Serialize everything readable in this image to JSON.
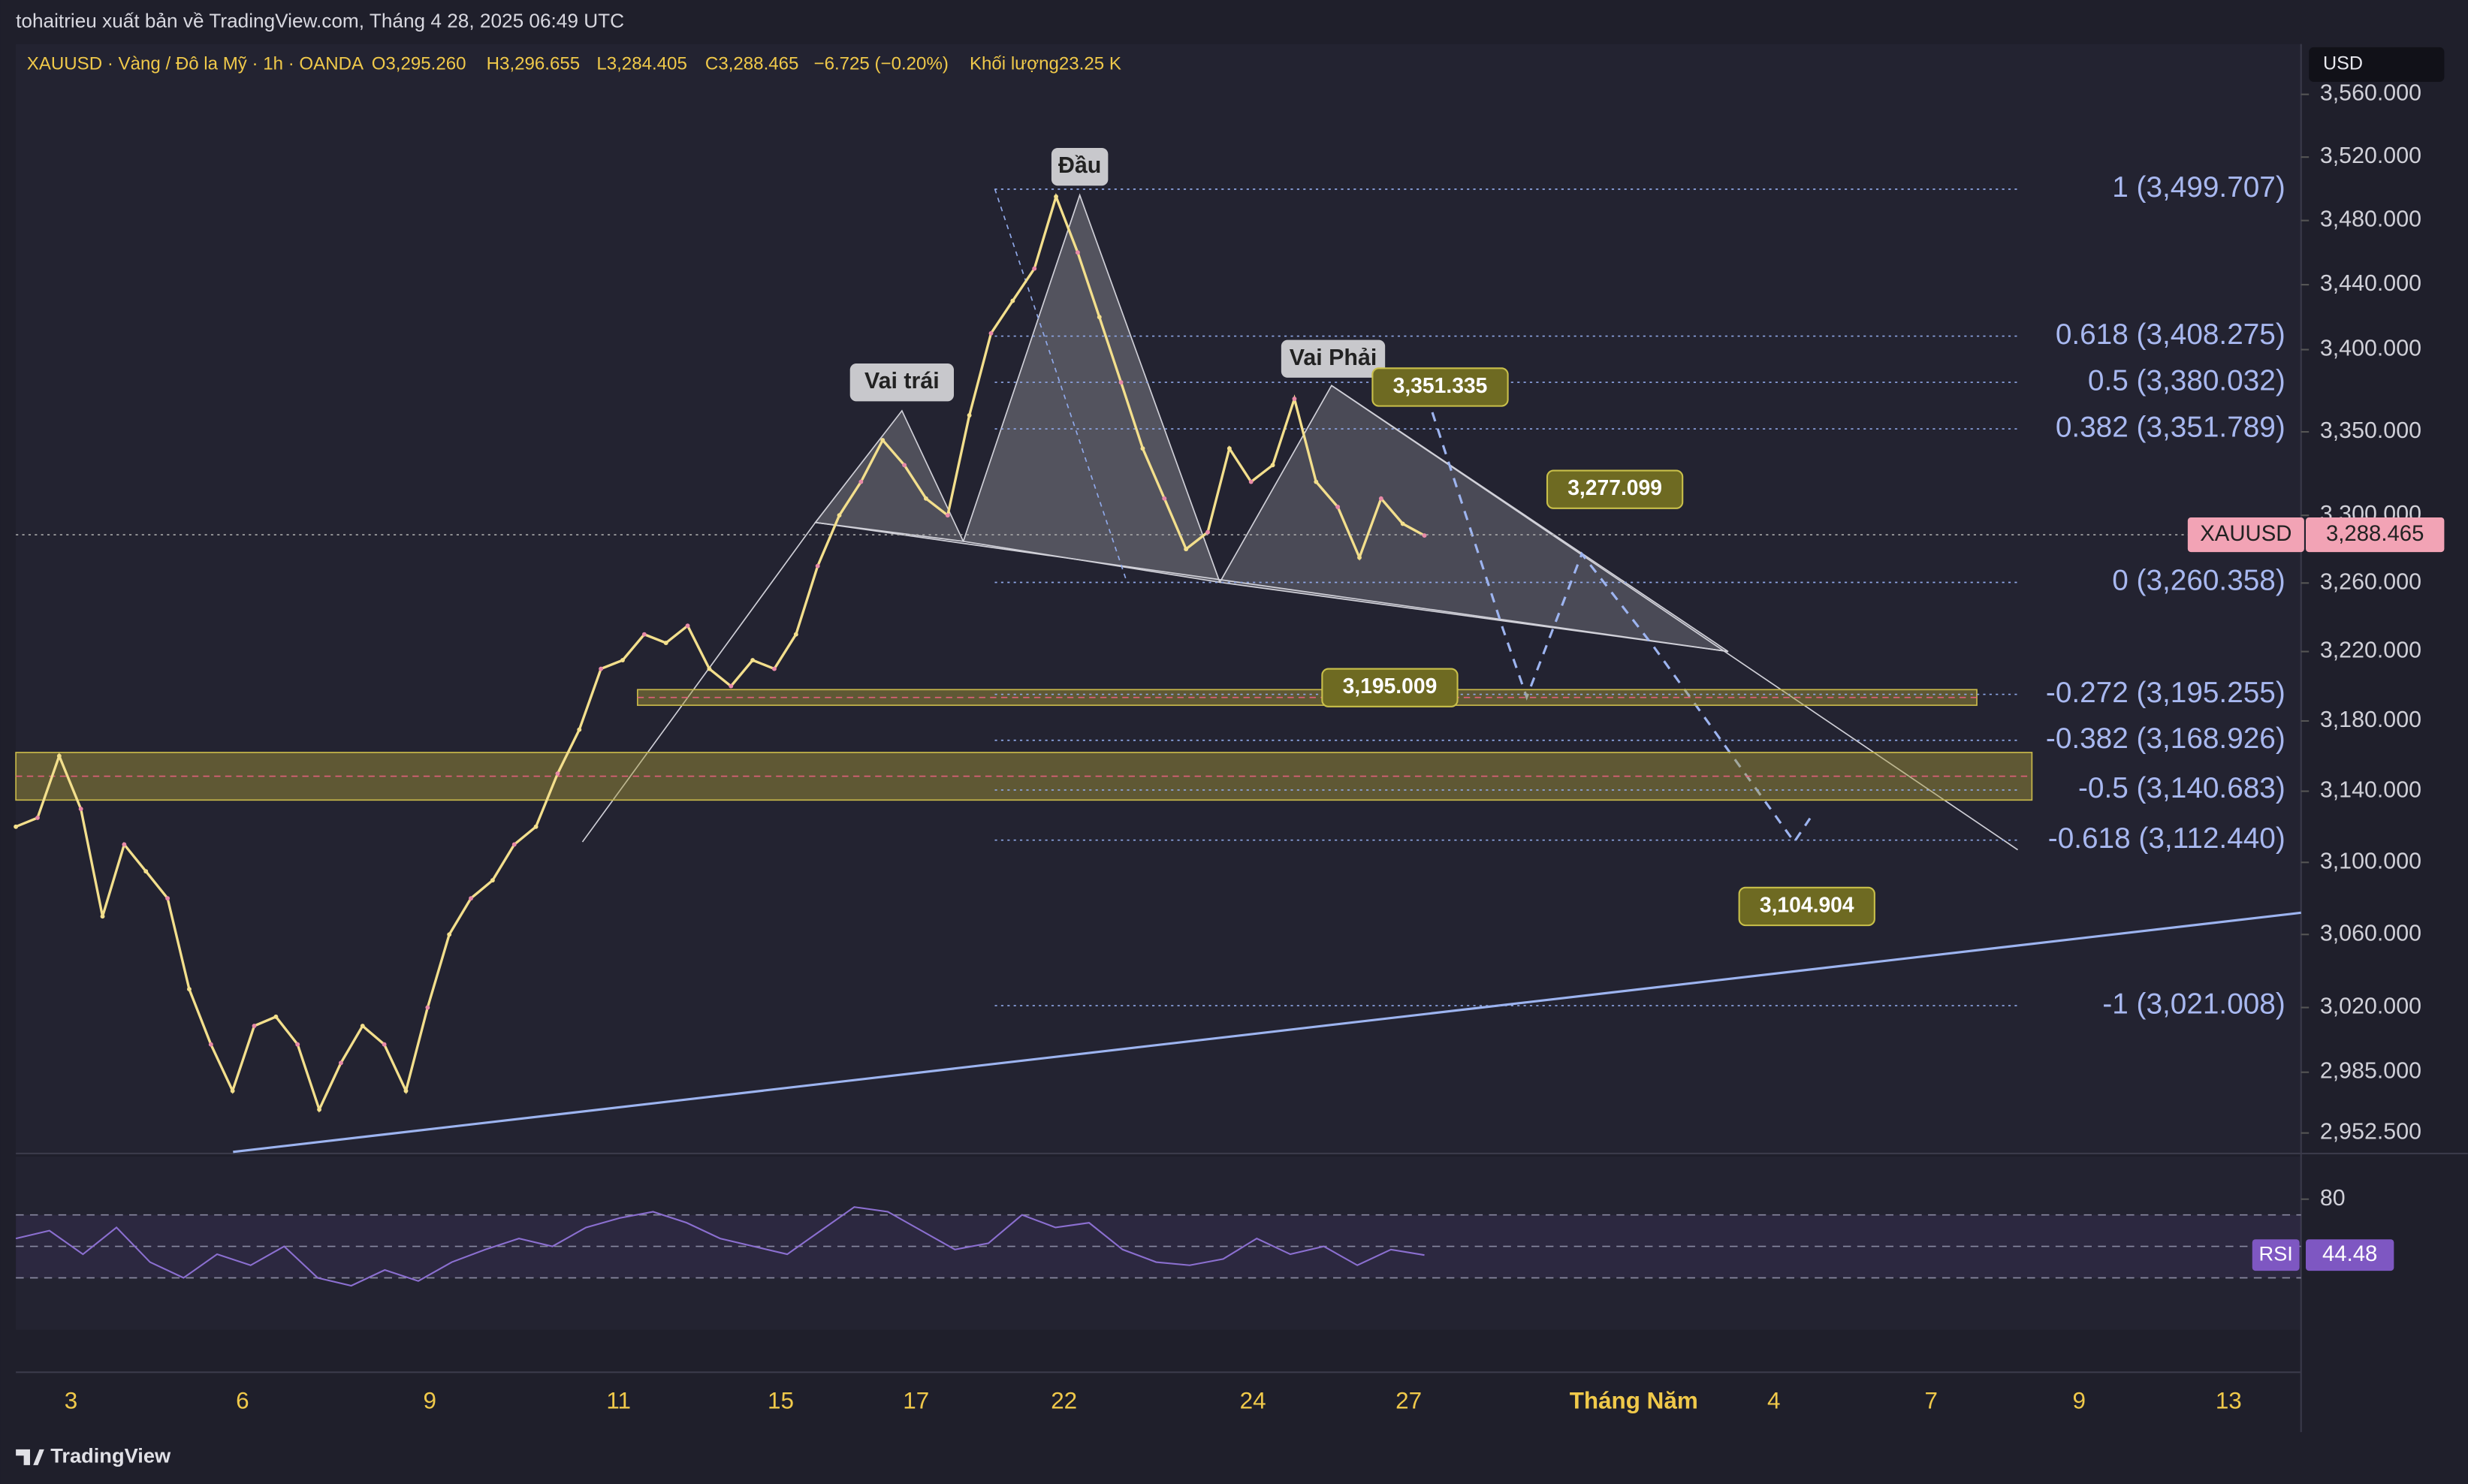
{
  "header": {
    "publisher": "tohaitrieu xuất bản về TradingView.com, Tháng 4 28, 2025 06:49 UTC",
    "symbol": "XAUUSD · Vàng / Đô la Mỹ · 1h · OANDA",
    "open": "O3,295.260",
    "high": "H3,296.655",
    "low": "L3,284.405",
    "close": "C3,288.465",
    "change": "−6.725 (−0.20%)",
    "volume": "Khối lượng23.25 K"
  },
  "currency": "USD",
  "footer": "TradingView",
  "chart_data": [
    {
      "type": "line",
      "log_scale": true,
      "ylim": [
        2941.6,
        3592.4
      ],
      "yticks": [
        {
          "value": 3560,
          "label": "3,560.000"
        },
        {
          "value": 3520,
          "label": "3,520.000"
        },
        {
          "value": 3480,
          "label": "3,480.000"
        },
        {
          "value": 3440,
          "label": "3,440.000"
        },
        {
          "value": 3400,
          "label": "3,400.000"
        },
        {
          "value": 3350,
          "label": "3,350.000"
        },
        {
          "value": 3300,
          "label": "3,300.000"
        },
        {
          "value": 3260,
          "label": "3,260.000"
        },
        {
          "value": 3220,
          "label": "3,220.000"
        },
        {
          "value": 3180,
          "label": "3,180.000"
        },
        {
          "value": 3140,
          "label": "3,140.000"
        },
        {
          "value": 3100,
          "label": "3,100.000"
        },
        {
          "value": 3060,
          "label": "3,060.000"
        },
        {
          "value": 3020,
          "label": "3,020.000"
        },
        {
          "value": 2985,
          "label": "2,985.000"
        },
        {
          "value": 2952.5,
          "label": "2,952.500"
        }
      ],
      "x_labels": [
        "3",
        "6",
        "9",
        "11",
        "15",
        "17",
        "22",
        "24",
        "27",
        "Tháng Năm",
        "4",
        "7",
        "9",
        "13"
      ],
      "series": [
        {
          "name": "XAUUSD",
          "color": "#f3df8c",
          "values": [
            3120,
            3125,
            3160,
            3130,
            3070,
            3110,
            3095,
            3080,
            3030,
            3000,
            2975,
            3010,
            3015,
            3000,
            2965,
            2990,
            3010,
            3000,
            2975,
            3020,
            3060,
            3080,
            3090,
            3110,
            3120,
            3150,
            3175,
            3210,
            3215,
            3230,
            3225,
            3235,
            3210,
            3200,
            3215,
            3210,
            3230,
            3270,
            3300,
            3320,
            3345,
            3330,
            3310,
            3300,
            3360,
            3410,
            3430,
            3450,
            3495,
            3460,
            3420,
            3380,
            3340,
            3310,
            3280,
            3290,
            3340,
            3320,
            3330,
            3370,
            3320,
            3305,
            3275,
            3310,
            3295,
            3288
          ]
        }
      ],
      "current_price": {
        "value": 3288.465,
        "label": "3,288.465"
      },
      "fib_levels": [
        {
          "value": 3499.707,
          "label": "1 (3,499.707)"
        },
        {
          "value": 3408.275,
          "label": "0.618 (3,408.275)"
        },
        {
          "value": 3380.032,
          "label": "0.5 (3,380.032)"
        },
        {
          "value": 3351.789,
          "label": "0.382 (3,351.789)"
        },
        {
          "value": 3260.358,
          "label": "0 (3,260.358)"
        },
        {
          "value": 3195.255,
          "label": "-0.272 (3,195.255)"
        },
        {
          "value": 3168.926,
          "label": "-0.382 (3,168.926)"
        },
        {
          "value": 3140.683,
          "label": "-0.5 (3,140.683)"
        },
        {
          "value": 3112.44,
          "label": "-0.618 (3,112.440)"
        },
        {
          "value": 3021.008,
          "label": "-1 (3,021.008)"
        }
      ],
      "zones": [
        [
          3189,
          3198
        ],
        [
          3135,
          3162
        ]
      ],
      "pattern_labels": [
        "Vai trái",
        "Đầu",
        "Vai Phải"
      ],
      "price_notes": [
        "3,351.335",
        "3,277.099",
        "3,195.009",
        "3,104.904"
      ]
    },
    {
      "type": "line",
      "ylim": [
        0,
        100
      ],
      "yticks": [
        80
      ],
      "bands": [
        30,
        50,
        70
      ],
      "series": [
        {
          "name": "RSI",
          "color": "#8b6fd0",
          "values": [
            55,
            60,
            45,
            62,
            40,
            30,
            45,
            38,
            50,
            30,
            25,
            35,
            28,
            40,
            48,
            55,
            50,
            62,
            68,
            72,
            65,
            55,
            50,
            45,
            60,
            75,
            72,
            60,
            48,
            52,
            70,
            62,
            65,
            48,
            40,
            38,
            42,
            55,
            45,
            50,
            38,
            48,
            44.48
          ]
        }
      ],
      "current": 44.48
    }
  ]
}
